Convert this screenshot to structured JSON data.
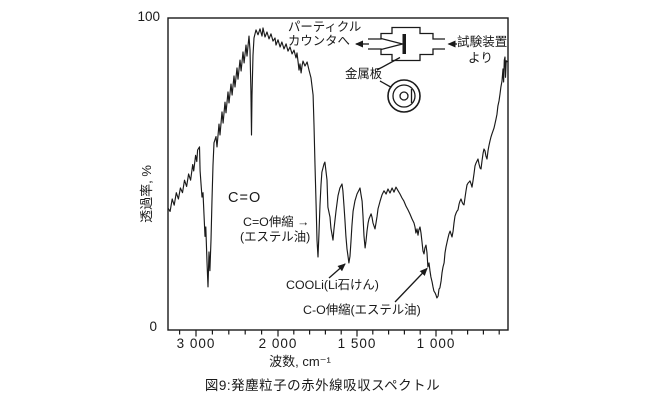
{
  "page": {
    "background": "#ffffff",
    "ink": "#1a1a1a"
  },
  "figure_caption": "図9:発塵粒子の赤外線吸収スペクトル",
  "chart_data": {
    "type": "line",
    "title": "",
    "xlabel": "波数, cm⁻¹",
    "ylabel": "透過率, %",
    "legend": "none",
    "grid": false,
    "x_axis": {
      "unit": "cm⁻¹",
      "direction": "decreasing",
      "scale_change_at": 2000,
      "visible_range": [
        3340,
        545
      ],
      "ticks": [
        {
          "value": 3000,
          "label": "3 000"
        },
        {
          "value": 2000,
          "label": "2 000"
        },
        {
          "value": 1500,
          "label": "1 500"
        },
        {
          "value": 1000,
          "label": "1 000"
        }
      ]
    },
    "y_axis": {
      "unit": "%",
      "min": 0,
      "max": 100,
      "ticks": [
        {
          "value": 100,
          "label": "100"
        },
        {
          "value": 0,
          "label": "0"
        }
      ]
    },
    "series": [
      {
        "name": "発塵粒子の赤外線吸収スペクトル",
        "x_unit": "cm⁻¹",
        "y_unit": "%T",
        "points": [
          [
            3340,
            39
          ],
          [
            3316,
            38
          ],
          [
            3290,
            42
          ],
          [
            3266,
            40
          ],
          [
            3240,
            44
          ],
          [
            3215,
            42
          ],
          [
            3190,
            45.5
          ],
          [
            3165,
            44
          ],
          [
            3140,
            48
          ],
          [
            3115,
            46
          ],
          [
            3090,
            50
          ],
          [
            3066,
            48
          ],
          [
            3040,
            53
          ],
          [
            3028,
            51
          ],
          [
            3005,
            56
          ],
          [
            2990,
            54
          ],
          [
            2980,
            57.7
          ],
          [
            2957,
            58.7
          ],
          [
            2950,
            51
          ],
          [
            2938,
            46.5
          ],
          [
            2927,
            42.6
          ],
          [
            2915,
            44
          ],
          [
            2903,
            37
          ],
          [
            2890,
            30
          ],
          [
            2880,
            33
          ],
          [
            2866,
            21.8
          ],
          [
            2854,
            13.8
          ],
          [
            2842,
            25
          ],
          [
            2830,
            19
          ],
          [
            2817,
            28.8
          ],
          [
            2805,
            41.7
          ],
          [
            2793,
            52.9
          ],
          [
            2780,
            60
          ],
          [
            2756,
            62
          ],
          [
            2744,
            58.7
          ],
          [
            2720,
            66
          ],
          [
            2707,
            62.5
          ],
          [
            2683,
            69.9
          ],
          [
            2670,
            66.3
          ],
          [
            2646,
            73
          ],
          [
            2634,
            69.6
          ],
          [
            2610,
            76.3
          ],
          [
            2598,
            72.8
          ],
          [
            2573,
            78.8
          ],
          [
            2560,
            75.3
          ],
          [
            2536,
            81.4
          ],
          [
            2524,
            77.9
          ],
          [
            2500,
            84
          ],
          [
            2488,
            80.4
          ],
          [
            2463,
            86.5
          ],
          [
            2450,
            83
          ],
          [
            2427,
            89.1
          ],
          [
            2414,
            85.6
          ],
          [
            2390,
            91.3
          ],
          [
            2378,
            87.8
          ],
          [
            2354,
            94.2
          ],
          [
            2341,
            89.7
          ],
          [
            2330,
            76.9
          ],
          [
            2323,
            62.5
          ],
          [
            2317,
            75.3
          ],
          [
            2305,
            88.1
          ],
          [
            2293,
            93.6
          ],
          [
            2268,
            96.2
          ],
          [
            2244,
            94.6
          ],
          [
            2220,
            96.5
          ],
          [
            2195,
            94.2
          ],
          [
            2183,
            96.8
          ],
          [
            2159,
            93.9
          ],
          [
            2134,
            95.5
          ],
          [
            2110,
            93.3
          ],
          [
            2085,
            94.9
          ],
          [
            2061,
            92.6
          ],
          [
            2037,
            93.6
          ],
          [
            2024,
            91.3
          ],
          [
            2000,
            93
          ],
          [
            1987,
            90.7
          ],
          [
            1975,
            92.3
          ],
          [
            1962,
            90.1
          ],
          [
            1949,
            91.7
          ],
          [
            1937,
            89.4
          ],
          [
            1924,
            90.7
          ],
          [
            1911,
            88.5
          ],
          [
            1899,
            89.7
          ],
          [
            1886,
            87.2
          ],
          [
            1880,
            88.8
          ],
          [
            1873,
            85.9
          ],
          [
            1867,
            83.3
          ],
          [
            1861,
            85.3
          ],
          [
            1854,
            82.4
          ],
          [
            1848,
            84.6
          ],
          [
            1842,
            86.2
          ],
          [
            1829,
            84.6
          ],
          [
            1816,
            85.9
          ],
          [
            1804,
            83.3
          ],
          [
            1791,
            80.8
          ],
          [
            1778,
            75.3
          ],
          [
            1772,
            65.7
          ],
          [
            1766,
            52.9
          ],
          [
            1759,
            40.1
          ],
          [
            1753,
            28.8
          ],
          [
            1747,
            23.4
          ],
          [
            1741,
            30.4
          ],
          [
            1734,
            40.1
          ],
          [
            1728,
            46.5
          ],
          [
            1722,
            50.6
          ],
          [
            1709,
            53.2
          ],
          [
            1703,
            53.8
          ],
          [
            1690,
            48.1
          ],
          [
            1684,
            39.4
          ],
          [
            1671,
            36.2
          ],
          [
            1665,
            32.7
          ],
          [
            1652,
            28.8
          ],
          [
            1646,
            32.1
          ],
          [
            1633,
            38.1
          ],
          [
            1620,
            43
          ],
          [
            1608,
            45.5
          ],
          [
            1595,
            46.8
          ],
          [
            1589,
            44.6
          ],
          [
            1582,
            39.7
          ],
          [
            1576,
            34.9
          ],
          [
            1570,
            30.1
          ],
          [
            1563,
            26
          ],
          [
            1557,
            23.7
          ],
          [
            1551,
            21.5
          ],
          [
            1544,
            23.7
          ],
          [
            1538,
            28.5
          ],
          [
            1532,
            33.3
          ],
          [
            1525,
            38.1
          ],
          [
            1513,
            41.3
          ],
          [
            1500,
            43.6
          ],
          [
            1487,
            44.9
          ],
          [
            1481,
            45.5
          ],
          [
            1475,
            43.6
          ],
          [
            1468,
            41.3
          ],
          [
            1462,
            36.5
          ],
          [
            1456,
            30.1
          ],
          [
            1449,
            26.3
          ],
          [
            1443,
            28.5
          ],
          [
            1437,
            31.7
          ],
          [
            1430,
            34.3
          ],
          [
            1424,
            35.6
          ],
          [
            1411,
            37.2
          ],
          [
            1405,
            36.2
          ],
          [
            1399,
            34.3
          ],
          [
            1386,
            32.4
          ],
          [
            1380,
            34.3
          ],
          [
            1373,
            36.5
          ],
          [
            1367,
            38.8
          ],
          [
            1354,
            41.3
          ],
          [
            1342,
            43.3
          ],
          [
            1329,
            44.6
          ],
          [
            1316,
            43.6
          ],
          [
            1304,
            45.2
          ],
          [
            1291,
            43.9
          ],
          [
            1278,
            45.5
          ],
          [
            1266,
            44.2
          ],
          [
            1253,
            45.8
          ],
          [
            1240,
            44.6
          ],
          [
            1228,
            43.6
          ],
          [
            1215,
            42.3
          ],
          [
            1203,
            41.3
          ],
          [
            1190,
            39.7
          ],
          [
            1177,
            38.5
          ],
          [
            1165,
            37.2
          ],
          [
            1152,
            35.6
          ],
          [
            1139,
            34.3
          ],
          [
            1133,
            33
          ],
          [
            1127,
            31.1
          ],
          [
            1120,
            32.4
          ],
          [
            1114,
            30.4
          ],
          [
            1108,
            32.1
          ],
          [
            1101,
            33
          ],
          [
            1095,
            31.1
          ],
          [
            1089,
            28.5
          ],
          [
            1082,
            25.3
          ],
          [
            1076,
            24.4
          ],
          [
            1070,
            26.3
          ],
          [
            1063,
            27.2
          ],
          [
            1057,
            24.7
          ],
          [
            1051,
            20.2
          ],
          [
            1044,
            21.5
          ],
          [
            1038,
            18.9
          ],
          [
            1032,
            17
          ],
          [
            1025,
            15.4
          ],
          [
            1019,
            13.8
          ],
          [
            1013,
            12.5
          ],
          [
            1006,
            11.9
          ],
          [
            1000,
            11.2
          ],
          [
            994,
            10.3
          ],
          [
            987,
            10.9
          ],
          [
            981,
            13.1
          ],
          [
            975,
            13.5
          ],
          [
            968,
            15.7
          ],
          [
            962,
            18.3
          ],
          [
            956,
            20.2
          ],
          [
            949,
            21.5
          ],
          [
            943,
            24.7
          ],
          [
            937,
            26.6
          ],
          [
            930,
            28.2
          ],
          [
            924,
            29.5
          ],
          [
            918,
            30.8
          ],
          [
            911,
            31.7
          ],
          [
            905,
            30.8
          ],
          [
            899,
            29.8
          ],
          [
            892,
            31.7
          ],
          [
            886,
            34.3
          ],
          [
            880,
            36.5
          ],
          [
            873,
            37.5
          ],
          [
            867,
            38.1
          ],
          [
            861,
            38.5
          ],
          [
            854,
            40.4
          ],
          [
            848,
            41.3
          ],
          [
            842,
            42
          ],
          [
            835,
            41
          ],
          [
            829,
            40.4
          ],
          [
            823,
            40.1
          ],
          [
            816,
            42.6
          ],
          [
            810,
            44.6
          ],
          [
            804,
            46.5
          ],
          [
            797,
            47.1
          ],
          [
            791,
            47.4
          ],
          [
            785,
            47.8
          ],
          [
            778,
            46.8
          ],
          [
            772,
            45.8
          ],
          [
            766,
            47.8
          ],
          [
            759,
            50.3
          ],
          [
            753,
            52.6
          ],
          [
            747,
            53.5
          ],
          [
            740,
            54.2
          ],
          [
            734,
            54.8
          ],
          [
            728,
            53.2
          ],
          [
            721,
            51.9
          ],
          [
            715,
            51.6
          ],
          [
            709,
            54.2
          ],
          [
            702,
            56.7
          ],
          [
            696,
            58
          ],
          [
            690,
            57.4
          ],
          [
            684,
            55.8
          ],
          [
            677,
            54.8
          ],
          [
            671,
            57.4
          ],
          [
            665,
            59
          ],
          [
            658,
            60.6
          ],
          [
            652,
            61.9
          ],
          [
            646,
            62.8
          ],
          [
            639,
            63.8
          ],
          [
            633,
            64.7
          ],
          [
            627,
            66
          ],
          [
            620,
            67.6
          ],
          [
            614,
            69.2
          ],
          [
            608,
            71.8
          ],
          [
            601,
            73.4
          ],
          [
            595,
            75.6
          ],
          [
            589,
            77.9
          ],
          [
            582,
            79.8
          ],
          [
            576,
            83.7
          ],
          [
            572,
            79.5
          ],
          [
            568,
            86.5
          ],
          [
            563,
            87.5
          ],
          [
            560,
            81
          ],
          [
            556,
            86.3
          ],
          [
            550,
            86
          ],
          [
            545,
            86.2
          ]
        ]
      }
    ],
    "annotations": [
      {
        "id": "carbonyl",
        "text": "C=O"
      },
      {
        "id": "carbonyl-stretch",
        "text": "C=O伸縮 →"
      },
      {
        "id": "ester-oil",
        "text": "(エステル油)"
      },
      {
        "id": "lithium-soap",
        "text": "COOLi(Li石けん)"
      },
      {
        "id": "co-stretch",
        "text": "C-O伸縮(エステル油)"
      }
    ]
  },
  "inset_diagram": {
    "to_particle_counter": [
      "パーティクル",
      "カウンタへ"
    ],
    "from_test_apparatus": [
      "試験装置",
      "より"
    ],
    "metal_plate_label": "金属板"
  }
}
